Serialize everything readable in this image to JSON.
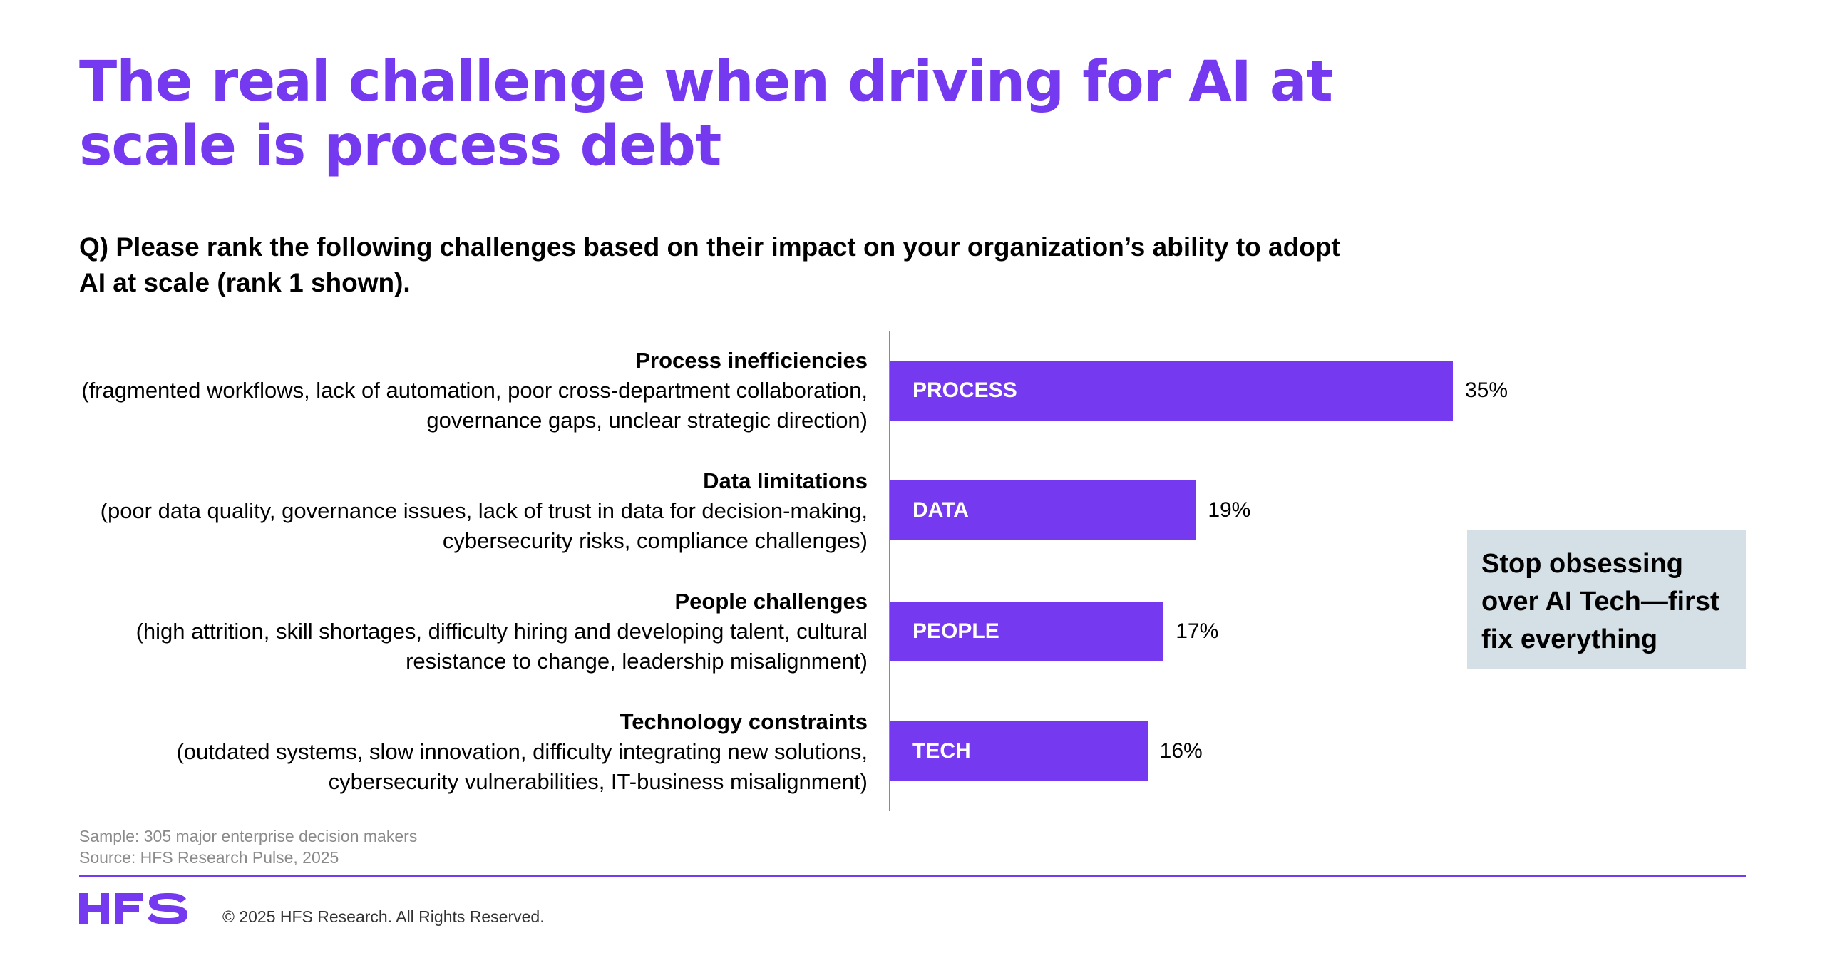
{
  "title": {
    "line1": "The real challenge when driving for AI at",
    "line2": "scale is process debt"
  },
  "question": {
    "line1": "Q) Please rank the following challenges based on their impact on your organization’s ability to adopt",
    "line2": "AI at scale (rank 1 shown)."
  },
  "categories": [
    {
      "heading": "Process inefficiencies",
      "detail1": "(fragmented workflows, lack of automation, poor cross-department collaboration,",
      "detail2": "governance gaps, unclear strategic direction)"
    },
    {
      "heading": "Data limitations",
      "detail1": "(poor data quality, governance issues, lack of trust in data for decision-making,",
      "detail2": "cybersecurity risks, compliance challenges)"
    },
    {
      "heading": "People challenges",
      "detail1": "(high attrition, skill shortages, difficulty hiring and developing talent, cultural",
      "detail2": "resistance to change, leadership misalignment)"
    },
    {
      "heading": "Technology constraints",
      "detail1": "(outdated systems, slow innovation, difficulty integrating new solutions,",
      "detail2": "cybersecurity vulnerabilities, IT-business misalignment)"
    }
  ],
  "chart_data": {
    "type": "bar",
    "orientation": "horizontal",
    "categories": [
      "PROCESS",
      "DATA",
      "PEOPLE",
      "TECH"
    ],
    "values": [
      35,
      19,
      17,
      16
    ],
    "value_labels": [
      "35%",
      "19%",
      "17%",
      "16%"
    ],
    "unit": "%",
    "xlim": [
      0,
      35
    ],
    "grid": false,
    "bar_color": "#7539f0"
  },
  "callout": {
    "line1": "Stop obsessing",
    "line2": "over AI Tech—first",
    "line3": "fix everything"
  },
  "footnotes": {
    "sample": "Sample: 305 major enterprise decision makers",
    "source": "Source: HFS Research Pulse, 2025"
  },
  "footer": {
    "logo": "HFS",
    "copyright": "© 2025 HFS Research. All Rights Reserved."
  },
  "colors": {
    "accent": "#7539f0",
    "callout_bg": "#d5dfe6",
    "axis": "#8a8a8a"
  }
}
